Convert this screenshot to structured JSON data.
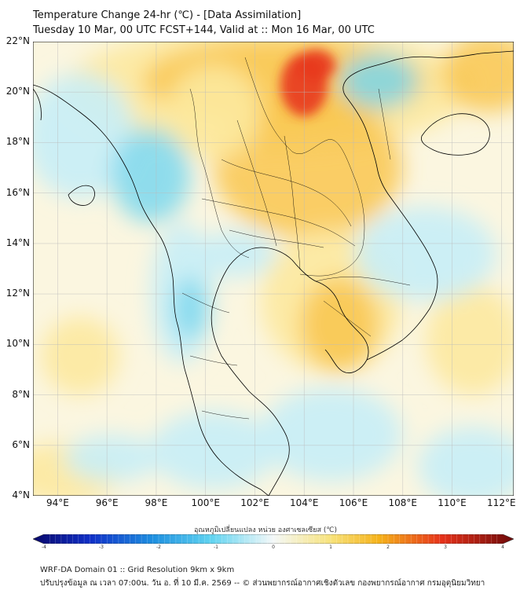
{
  "title": {
    "line1": "Temperature Change 24-hr (℃) - [Data Assimilation]",
    "line2": "Tuesday 10 Mar, 00 UTC FCST+144, Valid at :: Mon 16 Mar, 00 UTC"
  },
  "map": {
    "lat_range": [
      4,
      22
    ],
    "lon_range": [
      93,
      112.5
    ],
    "lat_labels": [
      "22°N",
      "20°N",
      "18°N",
      "16°N",
      "14°N",
      "12°N",
      "10°N",
      "8°N",
      "6°N",
      "4°N"
    ],
    "lon_labels": [
      "94°E",
      "96°E",
      "98°E",
      "100°E",
      "102°E",
      "104°E",
      "106°E",
      "108°E",
      "110°E",
      "112°E"
    ],
    "field_colors": {
      "warm_strong": "#e8391c",
      "warm": "#f9c74f",
      "warm_light": "#fde9a0",
      "neutral": "#fbf6e0",
      "cool_light": "#c8eef7",
      "cool": "#7dd8ef",
      "land_line": "#000000"
    }
  },
  "colorbar": {
    "title": "อุณหภูมิเปลี่ยนแปลง หน่วย องศาเซลเซียส (℃)",
    "range": [
      -4,
      4
    ],
    "ticks": [
      "-4",
      "-3",
      "-2",
      "-1",
      "0",
      "1",
      "2",
      "3",
      "4"
    ]
  },
  "footer": {
    "line1": "WRF-DA Domain 01 :: Grid Resolution 9km x 9km",
    "line2": "ปรับปรุงข้อมูล ณ เวลา 07:00น. วัน อ. ที่ 10 มี.ค. 2569 -- © ส่วนพยากรณ์อากาศเชิงตัวเลข กองพยากรณ์อากาศ กรมอุตุนิยมวิทยา"
  }
}
